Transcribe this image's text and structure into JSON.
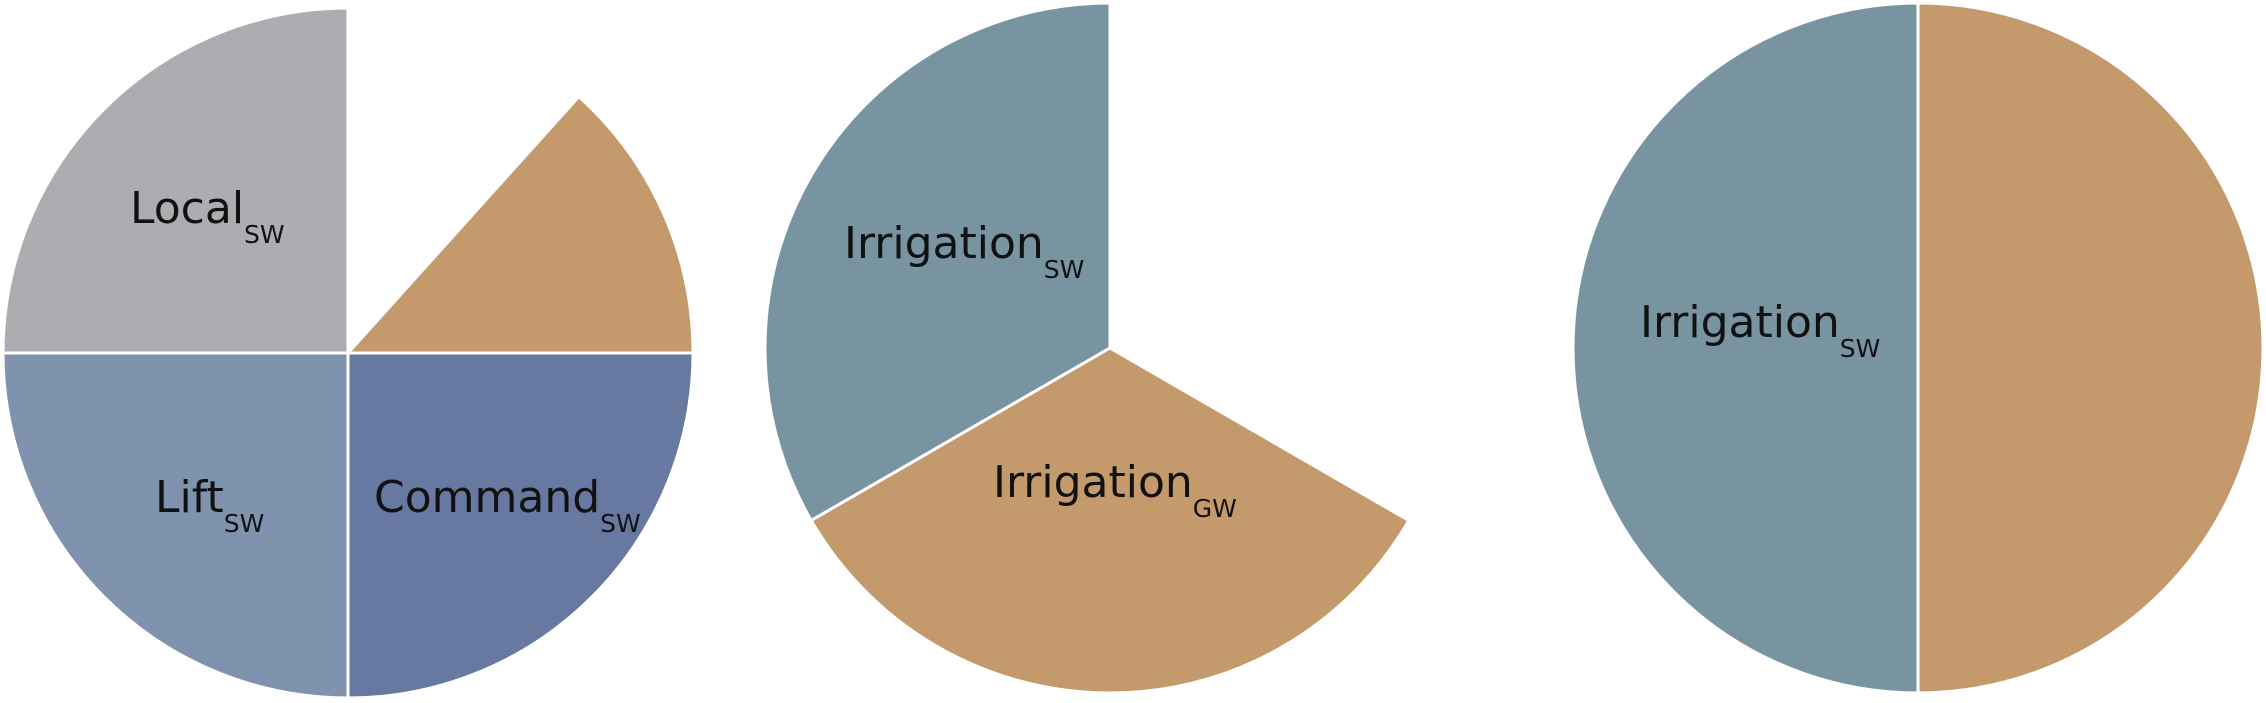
{
  "chart_data": [
    {
      "type": "pie",
      "title": "",
      "slices": [
        {
          "label": "Local",
          "subscript": "SW",
          "start_deg": 270,
          "sweep_deg": 90,
          "color": "#acadb1"
        },
        {
          "label": "",
          "subscript": "",
          "start_deg": 0,
          "sweep_deg": 90,
          "color": "#c4996c",
          "exploded": true,
          "radius_scale": 1.0,
          "start_override_deg": 42
        },
        {
          "label": "Command",
          "subscript": "SW",
          "start_deg": 90,
          "sweep_deg": 90,
          "color": "#6779a1"
        },
        {
          "label": "Lift",
          "subscript": "SW",
          "start_deg": 180,
          "sweep_deg": 90,
          "color": "#7f93ae"
        }
      ]
    },
    {
      "type": "pie",
      "title": "",
      "slices": [
        {
          "label": "Irrigation",
          "subscript": "SW",
          "start_deg": 240,
          "sweep_deg": 120,
          "color": "#7894a1"
        },
        {
          "label": "Irrigation",
          "subscript": "GW",
          "start_deg": 120,
          "sweep_deg": 120,
          "color": "#c4996c"
        }
      ]
    },
    {
      "type": "pie",
      "title": "",
      "slices": [
        {
          "label": "Irrigation",
          "subscript": "SW",
          "start_deg": 180,
          "sweep_deg": 180,
          "color": "#7894a1"
        },
        {
          "label": "",
          "subscript": "",
          "start_deg": 0,
          "sweep_deg": 180,
          "color": "#c4996c"
        }
      ]
    }
  ]
}
